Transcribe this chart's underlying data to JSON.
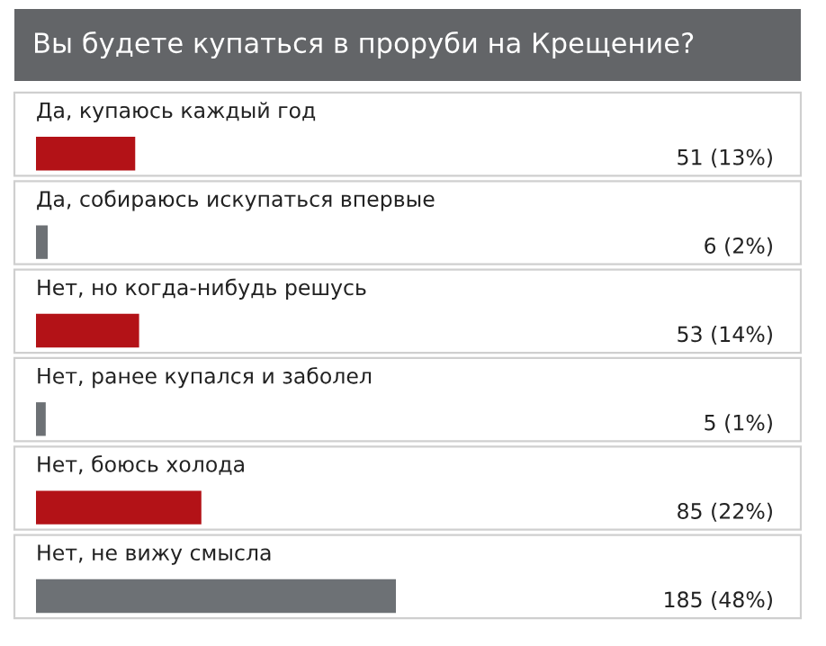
{
  "chart_data": {
    "type": "bar",
    "orientation": "horizontal",
    "title": "Вы будете купаться в проруби на Крещение?",
    "categories": [
      "Да, купаюсь каждый год",
      "Да, собираюсь искупаться впервые",
      "Нет, но когда-нибудь решусь",
      "Нет, ранее купался и заболел",
      "Нет, боюсь холода",
      "Нет, не вижу смысла"
    ],
    "values": [
      51,
      6,
      53,
      5,
      85,
      185
    ],
    "value_labels": [
      "51 (13%)",
      "6 (2%)",
      "53 (14%)",
      "5 (1%)",
      "85 (22%)",
      "185 (48%)"
    ],
    "colors": [
      "#b31217",
      "#6d7175",
      "#b31217",
      "#6d7175",
      "#b31217",
      "#6d7175"
    ],
    "legend": false
  }
}
